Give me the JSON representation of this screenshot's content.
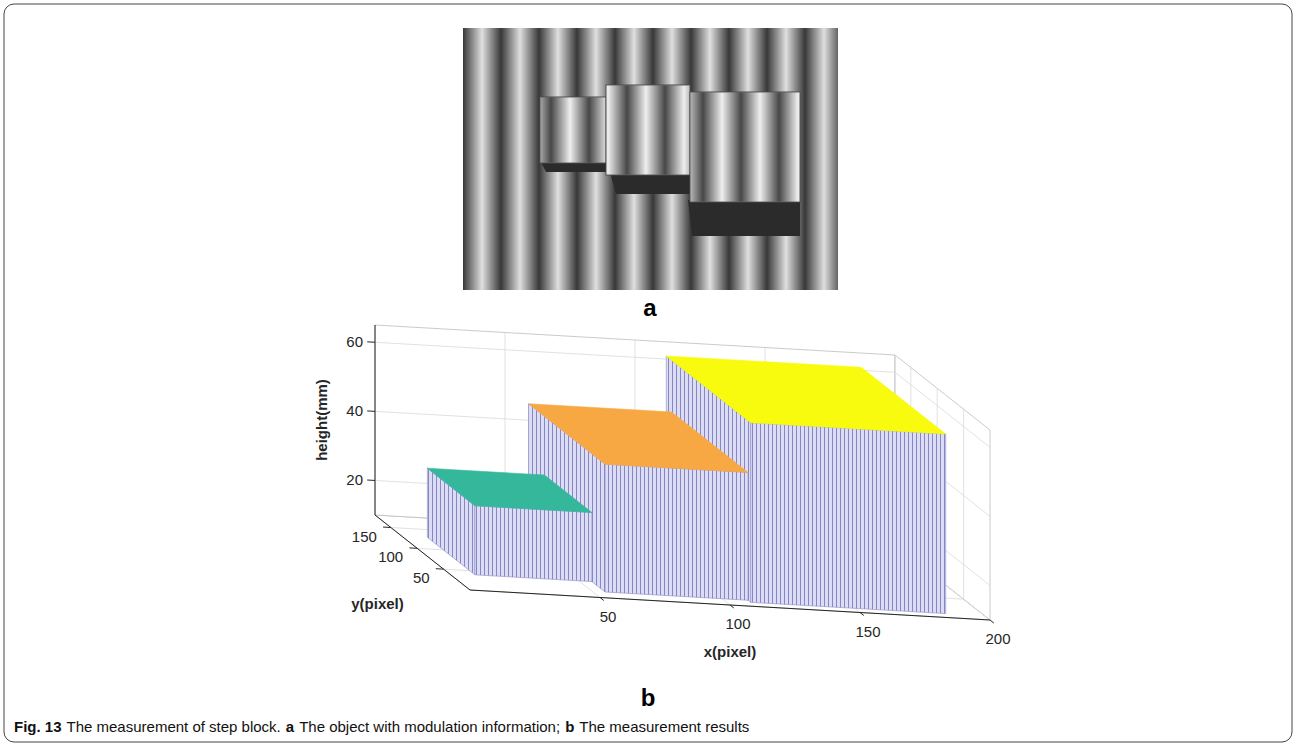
{
  "figure": {
    "label": "Fig. 13",
    "caption": "The measurement of step block.",
    "panels": [
      {
        "label": "a",
        "caption": "The object with modulation information;"
      },
      {
        "label": "b",
        "caption": "The measurement results"
      }
    ]
  },
  "chart_data": {
    "type": "bar3d",
    "x_label": "x(pixel)",
    "y_label": "y(pixel)",
    "z_label": "height(mm)",
    "xlim": [
      0,
      200
    ],
    "ylim": [
      0,
      180
    ],
    "zlim": [
      10,
      65
    ],
    "xticks": [
      50,
      100,
      150,
      200
    ],
    "yticks": [
      50,
      100,
      150
    ],
    "zticks": [
      20,
      40,
      60
    ],
    "grid": true,
    "values": [
      30,
      47,
      62
    ],
    "x_ranges": [
      [
        10,
        55
      ],
      [
        55,
        110
      ],
      [
        110,
        185
      ]
    ],
    "y_ranges": [
      [
        40,
        130
      ],
      [
        15,
        160
      ],
      [
        10,
        170
      ]
    ],
    "colors": [
      "#35b79b",
      "#f7a843",
      "#f9fb0e"
    ]
  }
}
